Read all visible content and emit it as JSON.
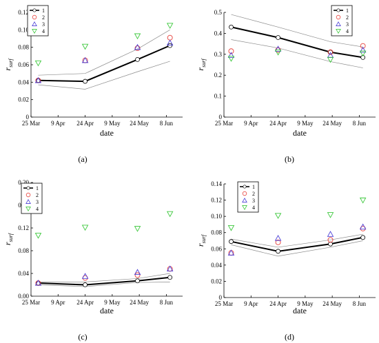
{
  "chart_data": [
    {
      "type": "line",
      "panel": "(a)",
      "xlabel": "date",
      "ylabel_base": "r",
      "ylabel_sub": "surf",
      "xticks": [
        "25 Mar",
        "9 Apr",
        "24 Apr",
        "9 May",
        "24 May",
        "8 Jun"
      ],
      "ylim": [
        0,
        0.12
      ],
      "yticks": [
        "0",
        "0.02",
        "0.04",
        "0.06",
        "0.08",
        "0.10",
        "0.12"
      ],
      "legend": [
        "1",
        "2",
        "3",
        "4"
      ],
      "legend_position": "top-left",
      "series": [
        {
          "name": "1",
          "marker": "circle",
          "line": true,
          "x": [
            4,
            30,
            59,
            77
          ],
          "y": [
            0.042,
            0.041,
            0.066,
            0.082
          ]
        },
        {
          "name": "2",
          "marker": "circle-open",
          "x": [
            4,
            30,
            59,
            77
          ],
          "y": [
            0.042,
            0.065,
            0.079,
            0.091
          ]
        },
        {
          "name": "3",
          "marker": "triangle-up",
          "x": [
            4,
            30,
            59,
            77
          ],
          "y": [
            0.042,
            0.065,
            0.08,
            0.085
          ]
        },
        {
          "name": "4",
          "marker": "triangle-down",
          "x": [
            4,
            30,
            59,
            77
          ],
          "y": [
            0.062,
            0.081,
            0.093,
            0.105
          ]
        }
      ],
      "bands": [
        {
          "x": [
            4,
            30,
            59,
            77
          ],
          "y": [
            0.048,
            0.05,
            0.078,
            0.1
          ]
        },
        {
          "x": [
            4,
            30,
            59,
            77
          ],
          "y": [
            0.037,
            0.032,
            0.052,
            0.064
          ]
        }
      ],
      "colors": {
        "s1": "#000000",
        "s2": "#e8413b",
        "s3": "#4a3fd6",
        "s4": "#3cc83c",
        "band": "#8a8a8a"
      }
    },
    {
      "type": "line",
      "panel": "(b)",
      "xlabel": "date",
      "ylabel_base": "r",
      "ylabel_sub": "surf",
      "xticks": [
        "25 Mar",
        "9 Apr",
        "24 Apr",
        "9 May",
        "24 May",
        "8 Jun"
      ],
      "ylim": [
        0,
        0.5
      ],
      "yticks": [
        "0",
        "0.1",
        "0.2",
        "0.3",
        "0.4",
        "0.5"
      ],
      "legend": [
        "1",
        "2",
        "3",
        "4"
      ],
      "legend_position": "top-right",
      "series": [
        {
          "name": "1",
          "marker": "circle",
          "line": true,
          "x": [
            4,
            30,
            59,
            77
          ],
          "y": [
            0.43,
            0.38,
            0.31,
            0.285
          ]
        },
        {
          "name": "2",
          "marker": "circle-open",
          "x": [
            4,
            30,
            59,
            77
          ],
          "y": [
            0.315,
            0.32,
            0.31,
            0.34
          ]
        },
        {
          "name": "3",
          "marker": "triangle-up",
          "x": [
            4,
            30,
            59,
            77
          ],
          "y": [
            0.295,
            0.325,
            0.295,
            0.32
          ]
        },
        {
          "name": "4",
          "marker": "triangle-down",
          "x": [
            4,
            30,
            59,
            77
          ],
          "y": [
            0.28,
            0.31,
            0.275,
            0.305
          ]
        }
      ],
      "bands": [
        {
          "x": [
            4,
            30,
            59,
            77
          ],
          "y": [
            0.49,
            0.43,
            0.36,
            0.335
          ]
        },
        {
          "x": [
            4,
            30,
            59,
            77
          ],
          "y": [
            0.37,
            0.33,
            0.265,
            0.235
          ]
        }
      ],
      "colors": {
        "s1": "#000000",
        "s2": "#e8413b",
        "s3": "#4a3fd6",
        "s4": "#3cc83c",
        "band": "#8a8a8a"
      }
    },
    {
      "type": "line",
      "panel": "(c)",
      "xlabel": "date",
      "ylabel_base": "r",
      "ylabel_sub": "surf",
      "xticks": [
        "25 Mar",
        "9 Apr",
        "24 Apr",
        "9 May",
        "24 May",
        "8 Jun"
      ],
      "ylim": [
        0,
        0.2
      ],
      "yticks": [
        "0.00",
        "0.04",
        "0.08",
        "0.12",
        "0.16",
        "0.20"
      ],
      "legend": [
        "1",
        "2",
        "3",
        "4"
      ],
      "legend_position": "top-left",
      "series": [
        {
          "name": "1",
          "marker": "circle",
          "line": true,
          "x": [
            4,
            30,
            59,
            77
          ],
          "y": [
            0.023,
            0.02,
            0.027,
            0.033
          ]
        },
        {
          "name": "2",
          "marker": "circle-open",
          "x": [
            4,
            30,
            59,
            77
          ],
          "y": [
            0.023,
            0.032,
            0.037,
            0.048
          ]
        },
        {
          "name": "3",
          "marker": "triangle-up",
          "x": [
            4,
            30,
            59,
            77
          ],
          "y": [
            0.023,
            0.035,
            0.042,
            0.048
          ]
        },
        {
          "name": "4",
          "marker": "triangle-down",
          "x": [
            4,
            30,
            59,
            77
          ],
          "y": [
            0.107,
            0.121,
            0.119,
            0.145
          ]
        }
      ],
      "bands": [
        {
          "x": [
            4,
            30,
            59,
            77
          ],
          "y": [
            0.025,
            0.025,
            0.031,
            0.04
          ]
        },
        {
          "x": [
            4,
            30,
            59,
            77
          ],
          "y": [
            0.02,
            0.017,
            0.024,
            0.025
          ]
        }
      ],
      "colors": {
        "s1": "#000000",
        "s2": "#e8413b",
        "s3": "#4a3fd6",
        "s4": "#3cc83c",
        "band": "#8a8a8a"
      }
    },
    {
      "type": "line",
      "panel": "(d)",
      "xlabel": "date",
      "ylabel_base": "r",
      "ylabel_sub": "surf",
      "xticks": [
        "25 Mar",
        "9 Apr",
        "24 Apr",
        "9 May",
        "24 May",
        "8 Jun"
      ],
      "ylim": [
        0,
        0.14
      ],
      "yticks": [
        "0",
        "0.02",
        "0.04",
        "0.06",
        "0.08",
        "0.10",
        "0.12",
        "0.14"
      ],
      "legend": [
        "1",
        "2",
        "3",
        "4"
      ],
      "legend_position": "top-left",
      "series": [
        {
          "name": "1",
          "marker": "circle",
          "line": true,
          "x": [
            4,
            30,
            59,
            77
          ],
          "y": [
            0.069,
            0.057,
            0.066,
            0.074
          ]
        },
        {
          "name": "2",
          "marker": "circle-open",
          "x": [
            4,
            30,
            59,
            77
          ],
          "y": [
            0.055,
            0.068,
            0.071,
            0.085
          ]
        },
        {
          "name": "3",
          "marker": "triangle-up",
          "x": [
            4,
            30,
            59,
            77
          ],
          "y": [
            0.055,
            0.073,
            0.078,
            0.087
          ]
        },
        {
          "name": "4",
          "marker": "triangle-down",
          "x": [
            4,
            30,
            59,
            77
          ],
          "y": [
            0.086,
            0.101,
            0.102,
            0.12
          ]
        }
      ],
      "bands": [
        {
          "x": [
            4,
            30,
            59,
            77
          ],
          "y": [
            0.072,
            0.062,
            0.071,
            0.078
          ]
        },
        {
          "x": [
            4,
            30,
            59,
            77
          ],
          "y": [
            0.065,
            0.051,
            0.062,
            0.07
          ]
        }
      ],
      "colors": {
        "s1": "#000000",
        "s2": "#e8413b",
        "s3": "#4a3fd6",
        "s4": "#3cc83c",
        "band": "#8a8a8a"
      }
    }
  ]
}
